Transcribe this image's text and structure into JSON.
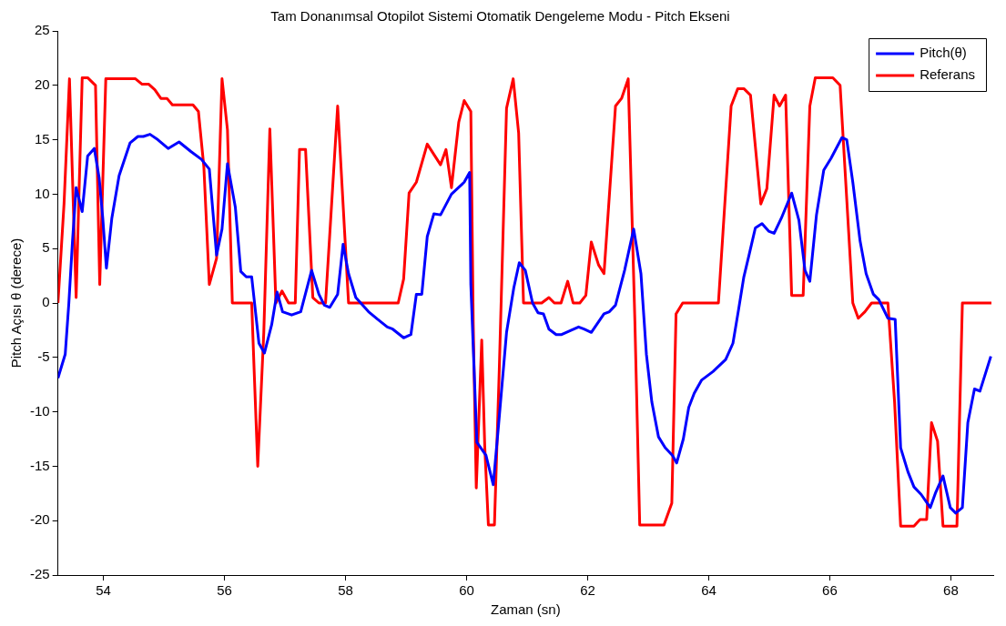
{
  "chart_data": {
    "type": "line",
    "title": "Tam Donanımsal Otopilot Sistemi Otomatik Dengeleme Modu - Pitch Ekseni",
    "xlabel": "Zaman (sn)",
    "ylabel": "Pitch Açısı θ (derece)",
    "xlim": [
      53.25,
      68.7
    ],
    "xticks": [
      54,
      56,
      58,
      60,
      62,
      64,
      66,
      68
    ],
    "ylim": [
      -25,
      25
    ],
    "yticks": [
      -25,
      -20,
      -15,
      -10,
      -5,
      0,
      5,
      10,
      15,
      20,
      25
    ],
    "grid": false,
    "legend": "top right",
    "marker": "none",
    "line_style": "solid",
    "series": [
      {
        "name": "Pitch(θ)",
        "color": "#0000ff",
        "x": [
          53.25,
          53.37,
          53.43,
          53.49,
          53.55,
          53.65,
          53.74,
          53.85,
          53.93,
          53.99,
          54.05,
          54.14,
          54.26,
          54.44,
          54.57,
          54.66,
          54.77,
          54.9,
          55.07,
          55.25,
          55.45,
          55.62,
          55.75,
          55.87,
          55.96,
          56.05,
          56.18,
          56.27,
          56.36,
          56.45,
          56.57,
          56.66,
          56.78,
          56.87,
          56.96,
          57.11,
          57.26,
          57.44,
          57.56,
          57.65,
          57.74,
          57.87,
          57.96,
          58.05,
          58.17,
          58.38,
          58.53,
          58.69,
          58.78,
          58.96,
          59.08,
          59.17,
          59.26,
          59.35,
          59.46,
          59.57,
          59.75,
          59.96,
          60.05,
          60.07,
          60.17,
          60.32,
          60.44,
          60.53,
          60.66,
          60.78,
          60.87,
          60.97,
          61.09,
          61.18,
          61.27,
          61.36,
          61.48,
          61.57,
          61.73,
          61.85,
          61.94,
          62.06,
          62.27,
          62.36,
          62.46,
          62.61,
          62.76,
          62.88,
          62.97,
          63.06,
          63.17,
          63.28,
          63.4,
          63.47,
          63.58,
          63.67,
          63.76,
          63.88,
          64.07,
          64.28,
          64.4,
          64.49,
          64.58,
          64.67,
          64.77,
          64.88,
          64.99,
          65.08,
          65.2,
          65.37,
          65.49,
          65.59,
          65.67,
          65.78,
          65.9,
          66.02,
          66.2,
          66.28,
          66.38,
          66.5,
          66.6,
          66.72,
          66.81,
          66.96,
          67.08,
          67.17,
          67.29,
          67.39,
          67.51,
          67.66,
          67.75,
          67.87,
          67.99,
          68.08,
          68.19,
          68.28,
          68.39,
          68.48,
          68.66
        ],
        "values": [
          -6.9,
          -4.7,
          0,
          5.7,
          10.6,
          8.4,
          13.5,
          14.2,
          11.5,
          7.8,
          3.2,
          7.8,
          11.7,
          14.7,
          15.3,
          15.3,
          15.5,
          15.0,
          14.2,
          14.8,
          13.9,
          13.2,
          12.3,
          4.4,
          6.8,
          12.8,
          8.8,
          2.9,
          2.4,
          2.4,
          -3.7,
          -4.6,
          -2.0,
          1.0,
          -0.8,
          -1.1,
          -0.8,
          3.0,
          0.8,
          -0.2,
          -0.4,
          0.8,
          5.4,
          2.7,
          0.5,
          -0.8,
          -1.5,
          -2.2,
          -2.4,
          -3.2,
          -2.9,
          0.8,
          0.8,
          6.1,
          8.2,
          8.1,
          10.0,
          11.1,
          12.0,
          1.7,
          -12.8,
          -14.0,
          -16.7,
          -11.1,
          -2.7,
          1.4,
          3.7,
          3.0,
          0,
          -0.9,
          -1.0,
          -2.4,
          -2.9,
          -2.9,
          -2.5,
          -2.2,
          -2.4,
          -2.7,
          -1.0,
          -0.8,
          -0.2,
          3.0,
          6.8,
          2.7,
          -4.7,
          -9.1,
          -12.3,
          -13.3,
          -14.0,
          -14.7,
          -12.5,
          -9.6,
          -8.3,
          -7.1,
          -6.3,
          -5.2,
          -3.7,
          -0.7,
          2.4,
          4.5,
          6.9,
          7.3,
          6.6,
          6.4,
          7.8,
          10.1,
          7.6,
          3.0,
          2.0,
          8.1,
          12.2,
          13.3,
          15.2,
          15.0,
          11.1,
          5.7,
          2.7,
          0.8,
          0.3,
          -1.4,
          -1.5,
          -13.3,
          -15.5,
          -16.9,
          -17.6,
          -18.8,
          -17.4,
          -15.9,
          -18.8,
          -19.3,
          -18.8,
          -11.0,
          -7.9,
          -8.1,
          -4.9
        ]
      },
      {
        "name": "Referans",
        "color": "#ff0000",
        "x": [
          53.25,
          53.35,
          53.44,
          53.55,
          53.65,
          53.74,
          53.87,
          53.94,
          54.04,
          54.53,
          54.64,
          54.75,
          54.85,
          54.95,
          55.05,
          55.14,
          55.48,
          55.57,
          55.66,
          55.75,
          55.87,
          55.96,
          56.05,
          56.13,
          56.45,
          56.49,
          56.55,
          56.65,
          56.75,
          56.85,
          56.95,
          57.06,
          57.17,
          57.24,
          57.34,
          57.46,
          57.56,
          57.67,
          57.87,
          58.05,
          58.87,
          58.96,
          59.05,
          59.17,
          59.35,
          59.57,
          59.66,
          59.75,
          59.87,
          59.96,
          60.07,
          60.11,
          60.16,
          60.25,
          60.3,
          60.36,
          60.46,
          60.54,
          60.66,
          60.77,
          60.86,
          60.94,
          61.24,
          61.36,
          61.45,
          61.56,
          61.67,
          61.76,
          61.87,
          61.97,
          62.06,
          62.18,
          62.27,
          62.46,
          62.56,
          62.67,
          62.78,
          62.86,
          63.26,
          63.39,
          63.46,
          63.57,
          64.16,
          64.37,
          64.48,
          64.58,
          64.69,
          64.86,
          64.96,
          65.08,
          65.17,
          65.27,
          65.37,
          65.56,
          65.67,
          65.76,
          66.05,
          66.17,
          66.38,
          66.47,
          66.58,
          66.69,
          66.96,
          67.07,
          67.17,
          67.39,
          67.49,
          67.6,
          67.68,
          67.78,
          67.87,
          68.1,
          68.19,
          68.67
        ],
        "values": [
          0,
          9.1,
          20.6,
          0.5,
          20.7,
          20.7,
          20.0,
          1.7,
          20.6,
          20.6,
          20.1,
          20.1,
          19.6,
          18.8,
          18.8,
          18.2,
          18.2,
          17.6,
          12.5,
          1.7,
          4.1,
          20.6,
          15.9,
          0,
          0,
          -6.1,
          -15.0,
          -2.7,
          16.0,
          0,
          1.1,
          0,
          0,
          14.1,
          14.1,
          0.5,
          0,
          0,
          18.1,
          0,
          0,
          2.2,
          10.1,
          11.1,
          14.6,
          12.7,
          14.1,
          10.6,
          16.6,
          18.6,
          17.6,
          -2.0,
          -17.0,
          -3.4,
          -13.2,
          -20.4,
          -20.4,
          -6.1,
          17.9,
          20.6,
          15.6,
          0,
          0,
          0.5,
          0,
          0,
          2.0,
          0,
          0,
          0.7,
          5.6,
          3.5,
          2.7,
          18.1,
          18.8,
          20.6,
          -1.7,
          -20.4,
          -20.4,
          -18.4,
          -1.0,
          0,
          0,
          18.1,
          19.7,
          19.7,
          19.1,
          9.1,
          10.5,
          19.1,
          18.1,
          19.1,
          0.7,
          0.7,
          18.1,
          20.7,
          20.7,
          20.0,
          0,
          -1.4,
          -0.8,
          0,
          0,
          -9.1,
          -20.5,
          -20.5,
          -19.9,
          -19.9,
          -11.0,
          -12.7,
          -20.5,
          -20.5,
          0,
          0
        ]
      }
    ]
  }
}
